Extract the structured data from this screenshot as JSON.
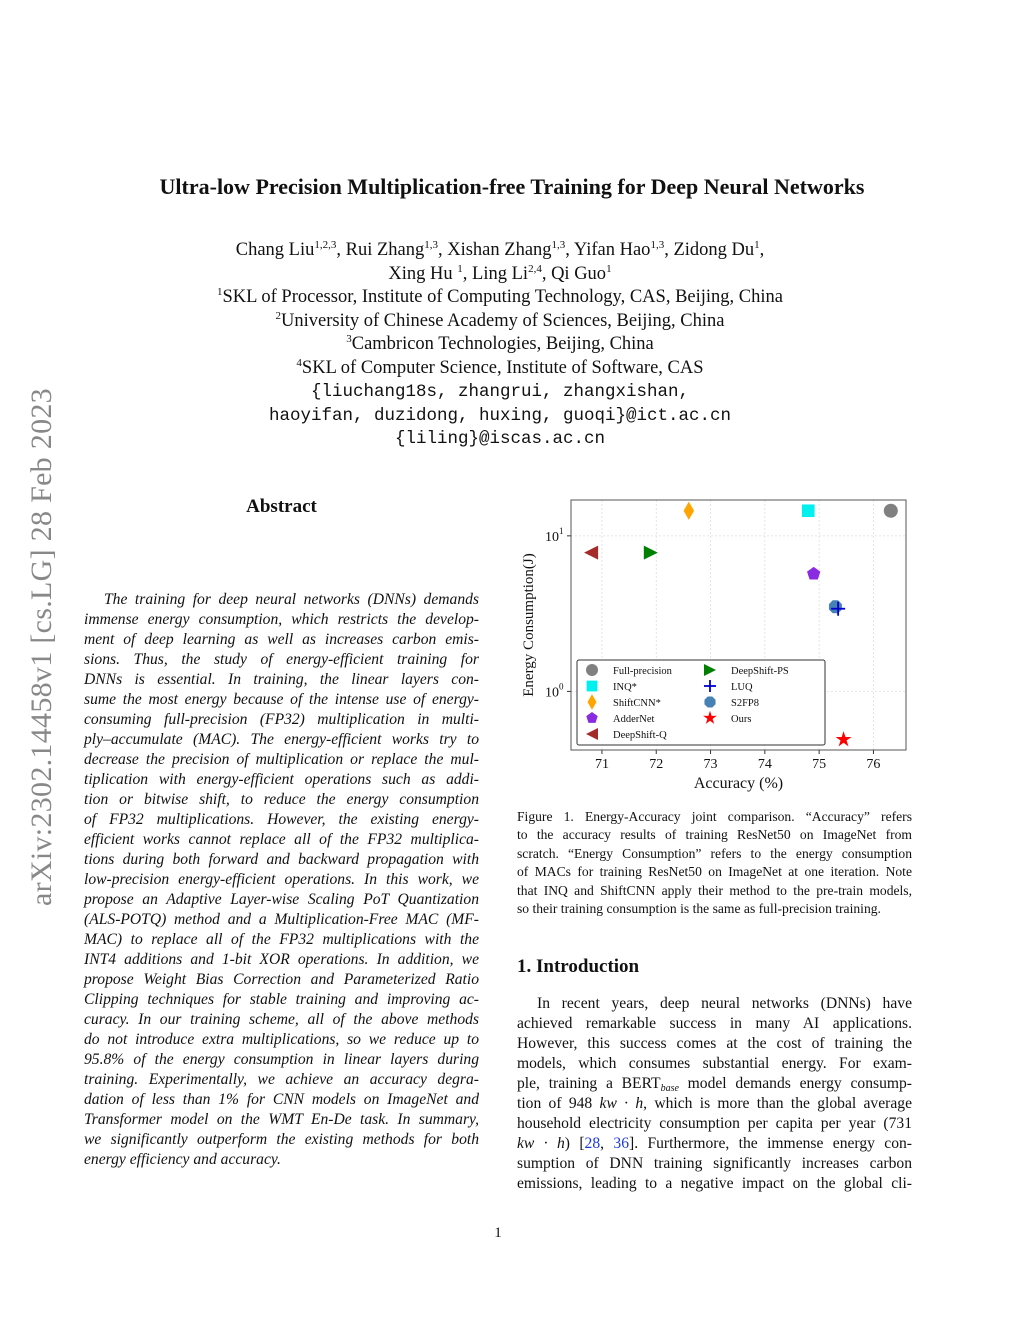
{
  "side_stamp": "arXiv:2302.14458v1  [cs.LG]  28 Feb 2023",
  "title": "Ultra-low Precision Multiplication-free Training for Deep Neural Networks",
  "authors": [
    [
      {
        "name": "Chang Liu",
        "sup": "1,2,3",
        "sep": ", "
      },
      {
        "name": "Rui Zhang",
        "sup": "1,3",
        "sep": ", "
      },
      {
        "name": "Xishan Zhang",
        "sup": "1,3",
        "sep": ", "
      },
      {
        "name": "Yifan Hao",
        "sup": "1,3",
        "sep": ", "
      },
      {
        "name": "Zidong Du",
        "sup": "1",
        "sep": ","
      }
    ],
    [
      {
        "name": "Xing Hu ",
        "sup": "1",
        "sep": ", "
      },
      {
        "name": "Ling Li",
        "sup": "2,4",
        "sep": ", "
      },
      {
        "name": "Qi Guo",
        "sup": "1",
        "sep": ""
      }
    ]
  ],
  "affiliations": [
    {
      "sup": "1",
      "text": "SKL of Processor, Institute of Computing Technology, CAS, Beijing, China"
    },
    {
      "sup": "2",
      "text": "University of Chinese Academy of Sciences, Beijing, China"
    },
    {
      "sup": "3",
      "text": "Cambricon Technologies, Beijing, China"
    },
    {
      "sup": "4",
      "text": "SKL of Computer Science, Institute of Software, CAS"
    }
  ],
  "emails": [
    "{liuchang18s, zhangrui, zhangxishan,",
    "haoyifan, duzidong, huxing, guoqi}@ict.ac.cn",
    "{liling}@iscas.ac.cn"
  ],
  "abstract": {
    "heading": "Abstract",
    "lines": [
      "The training for deep neural networks (DNNs) demands",
      "immense energy consumption, which restricts the develop-",
      "ment of deep learning as well as increases carbon emis-",
      "sions.  Thus, the study of energy-efficient training for",
      "DNNs is essential.  In training, the linear layers con-",
      "sume the most energy because of the intense use of energy-",
      "consuming full-precision (FP32) multiplication in multi-",
      "ply–accumulate (MAC). The energy-efficient works try to",
      "decrease the precision of multiplication or replace the mul-",
      "tiplication with energy-efficient operations such as addi-",
      "tion or bitwise shift, to reduce the energy consumption",
      "of FP32 multiplications.  However, the existing energy-",
      "efficient works cannot replace all of the FP32 multiplica-",
      "tions during both forward and backward propagation with",
      "low-precision energy-efficient operations. In this work, we",
      "propose an Adaptive Layer-wise Scaling PoT Quantization",
      "(ALS-POTQ) method and a Multiplication-Free MAC (MF-",
      "MAC) to replace all of the FP32 multiplications with the",
      "INT4 additions and 1-bit XOR operations. In addition, we",
      "propose Weight Bias Correction and Parameterized Ratio",
      "Clipping techniques for stable training and improving ac-",
      "curacy. In our training scheme, all of the above methods",
      "do not introduce extra multiplications, so we reduce up to",
      "95.8% of the energy consumption in linear layers during",
      "training. Experimentally, we achieve an accuracy degra-",
      "dation of less than 1% for CNN models on ImageNet and",
      "Transformer model on the WMT En-De task. In summary,",
      "we significantly outperform the existing methods for both",
      "energy efficiency and accuracy."
    ]
  },
  "chart_data": {
    "type": "scatter",
    "xlabel": "Accuracy (%)",
    "ylabel": "Energy Consumption(J)",
    "xlim": [
      70.43,
      76.6
    ],
    "ylim": [
      0.42,
      17
    ],
    "yscale": "log",
    "xticks": [
      "71",
      "72",
      "73",
      "74",
      "75",
      "76"
    ],
    "yticks": [
      {
        "base": "10",
        "exp": "1",
        "value": 10
      },
      {
        "base": "10",
        "exp": "0",
        "value": 1
      }
    ],
    "grid": true,
    "legend_placement": "lower-left",
    "series": [
      {
        "name": "Full-precision",
        "marker": "circle",
        "color": "#808080",
        "x": 76.32,
        "y": 14.5
      },
      {
        "name": "INQ*",
        "marker": "square",
        "color": "#00f0f0",
        "x": 74.8,
        "y": 14.5
      },
      {
        "name": "ShiftCNN*",
        "marker": "diamond",
        "color": "#ffa500",
        "x": 72.6,
        "y": 14.5
      },
      {
        "name": "AdderNet",
        "marker": "pentagon",
        "color": "#8a2be2",
        "x": 74.9,
        "y": 5.7
      },
      {
        "name": "DeepShift-Q",
        "marker": "triangle-left",
        "color": "#a52a2a",
        "x": 70.8,
        "y": 7.8
      },
      {
        "name": "DeepShift-PS",
        "marker": "triangle-right",
        "color": "#008000",
        "x": 71.9,
        "y": 7.8
      },
      {
        "name": "LUQ",
        "marker": "plus",
        "color": "#0000cd",
        "x": 75.35,
        "y": 3.4
      },
      {
        "name": "S2FP8",
        "marker": "octagon",
        "color": "#4682b4",
        "x": 75.3,
        "y": 3.5
      },
      {
        "name": "Ours",
        "marker": "star",
        "color": "#ff0000",
        "x": 75.45,
        "y": 0.49
      }
    ]
  },
  "caption": {
    "lines": [
      "Figure 1.  Energy-Accuracy joint comparison.  “Accuracy” refers",
      "to the accuracy results of training ResNet50 on ImageNet from",
      "scratch. “Energy Consumption” refers to the energy consumption",
      "of MACs for training ResNet50 on ImageNet at one iteration. Note",
      "that INQ and ShiftCNN apply their method to the pre-train models,",
      "so their training consumption is the same as full-precision training."
    ]
  },
  "intro": {
    "heading": "1. Introduction",
    "l1": "In recent years, deep neural networks (DNNs) have",
    "l2": "achieved remarkable success in many AI applications.",
    "l3": "However, this success comes at the cost of training the",
    "l4": "models, which consumes substantial energy.  For exam-",
    "l5a": "ple, training a BERT",
    "l5sub": "base",
    "l5b": " model demands energy consump-",
    "l6a": "tion of 948 ",
    "l6m": "kw · h",
    "l6b": ", which is more than the global average",
    "l7": "household electricity consumption per capita per year (731",
    "l8m": "kw · h",
    "l8a": ")  [",
    "cite1": "28",
    "l8b": ", ",
    "cite2": "36",
    "l8c": "].  Furthermore, the immense energy con-",
    "l9": "sumption of DNN training significantly increases carbon",
    "l10": "emissions, leading to a negative impact on the global cli-"
  },
  "page_number": "1"
}
